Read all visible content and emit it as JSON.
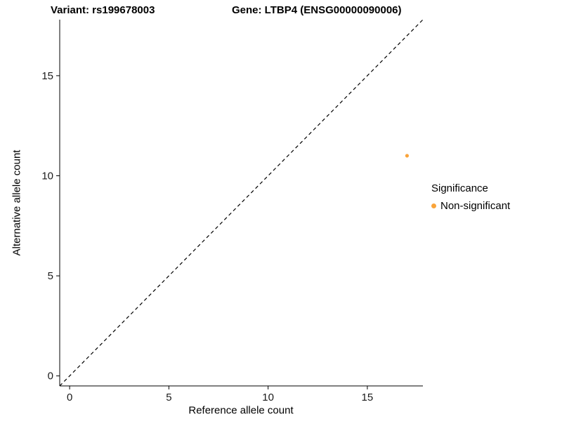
{
  "chart_data": {
    "type": "scatter",
    "title_left": "Variant: rs199678003",
    "title_right": "Gene: LTBP4 (ENSG00000090006)",
    "xlabel": "Reference allele count",
    "ylabel": "Alternative allele count",
    "xlim": [
      -0.5,
      17.8
    ],
    "ylim": [
      -0.5,
      17.8
    ],
    "x_ticks": [
      0,
      5,
      10,
      15
    ],
    "y_ticks": [
      0,
      5,
      10,
      15
    ],
    "grid": false,
    "axis_color": "#000000",
    "tick_label_color": "#1a1a1a",
    "reference_line": {
      "style": "dashed",
      "from": [
        -0.5,
        -0.5
      ],
      "to": [
        17.8,
        17.8
      ],
      "color": "#000000"
    },
    "series": [
      {
        "name": "Non-significant",
        "color": "#FAA43A",
        "points": [
          {
            "x": 17,
            "y": 11
          }
        ]
      }
    ],
    "legend": {
      "title": "Significance",
      "position": "right",
      "items": [
        {
          "label": "Non-significant",
          "color": "#FAA43A"
        }
      ]
    }
  }
}
